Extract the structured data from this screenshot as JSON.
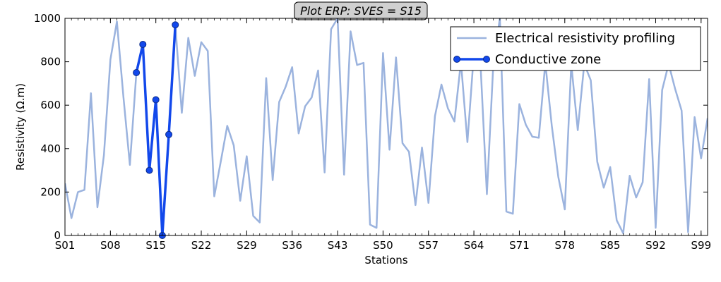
{
  "chart_data": {
    "type": "line",
    "title": "Plot ERP: SVES = S15",
    "xlabel": "Stations",
    "ylabel": "Resistivity (Ω.m)",
    "ylim": [
      0,
      1000
    ],
    "yticks": [
      0,
      200,
      400,
      600,
      800,
      1000
    ],
    "xtick_labels": [
      "S01",
      "S08",
      "S15",
      "S22",
      "S29",
      "S36",
      "S43",
      "S50",
      "S57",
      "S64",
      "S71",
      "S78",
      "S85",
      "S92",
      "S99"
    ],
    "xtick_indices": [
      1,
      8,
      15,
      22,
      29,
      36,
      43,
      50,
      57,
      64,
      71,
      78,
      85,
      92,
      99
    ],
    "xlim": [
      1,
      100
    ],
    "grid": false,
    "legend_position": "top-right",
    "series": [
      {
        "name": "Electrical resistivity profiling",
        "color": "#9bb3de",
        "style": "line",
        "x": [
          1,
          2,
          3,
          4,
          5,
          6,
          7,
          8,
          9,
          10,
          11,
          12,
          13,
          14,
          15,
          16,
          17,
          18,
          19,
          20,
          21,
          22,
          23,
          24,
          25,
          26,
          27,
          28,
          29,
          30,
          31,
          32,
          33,
          34,
          35,
          36,
          37,
          38,
          39,
          40,
          41,
          42,
          43,
          44,
          45,
          46,
          47,
          48,
          49,
          50,
          51,
          52,
          53,
          54,
          55,
          56,
          57,
          58,
          59,
          60,
          61,
          62,
          63,
          64,
          65,
          66,
          67,
          68,
          69,
          70,
          71,
          72,
          73,
          74,
          75,
          76,
          77,
          78,
          79,
          80,
          81,
          82,
          83,
          84,
          85,
          86,
          87,
          88,
          89,
          90,
          91,
          92,
          93,
          94,
          95,
          96,
          97,
          98,
          99,
          100
        ],
        "values": [
          240,
          80,
          200,
          210,
          655,
          130,
          370,
          810,
          985,
          640,
          325,
          750,
          880,
          300,
          625,
          0,
          465,
          970,
          565,
          910,
          735,
          890,
          850,
          180,
          340,
          505,
          415,
          160,
          365,
          90,
          60,
          725,
          255,
          615,
          685,
          775,
          470,
          595,
          635,
          760,
          290,
          950,
          1000,
          280,
          940,
          785,
          795,
          50,
          35,
          840,
          395,
          820,
          425,
          385,
          140,
          405,
          150,
          550,
          695,
          585,
          525,
          800,
          430,
          840,
          800,
          190,
          795,
          1000,
          110,
          100,
          605,
          510,
          455,
          450,
          795,
          505,
          270,
          120,
          790,
          485,
          790,
          715,
          340,
          220,
          315,
          70,
          10,
          275,
          175,
          245,
          720,
          35,
          670,
          790,
          675,
          575,
          15,
          545,
          355,
          540
        ]
      },
      {
        "name": "Conductive zone",
        "color": "#1248eb",
        "style": "line-marker",
        "x": [
          12,
          13,
          14,
          15,
          16,
          17,
          18
        ],
        "values": [
          750,
          880,
          300,
          625,
          0,
          465,
          970
        ]
      }
    ]
  }
}
